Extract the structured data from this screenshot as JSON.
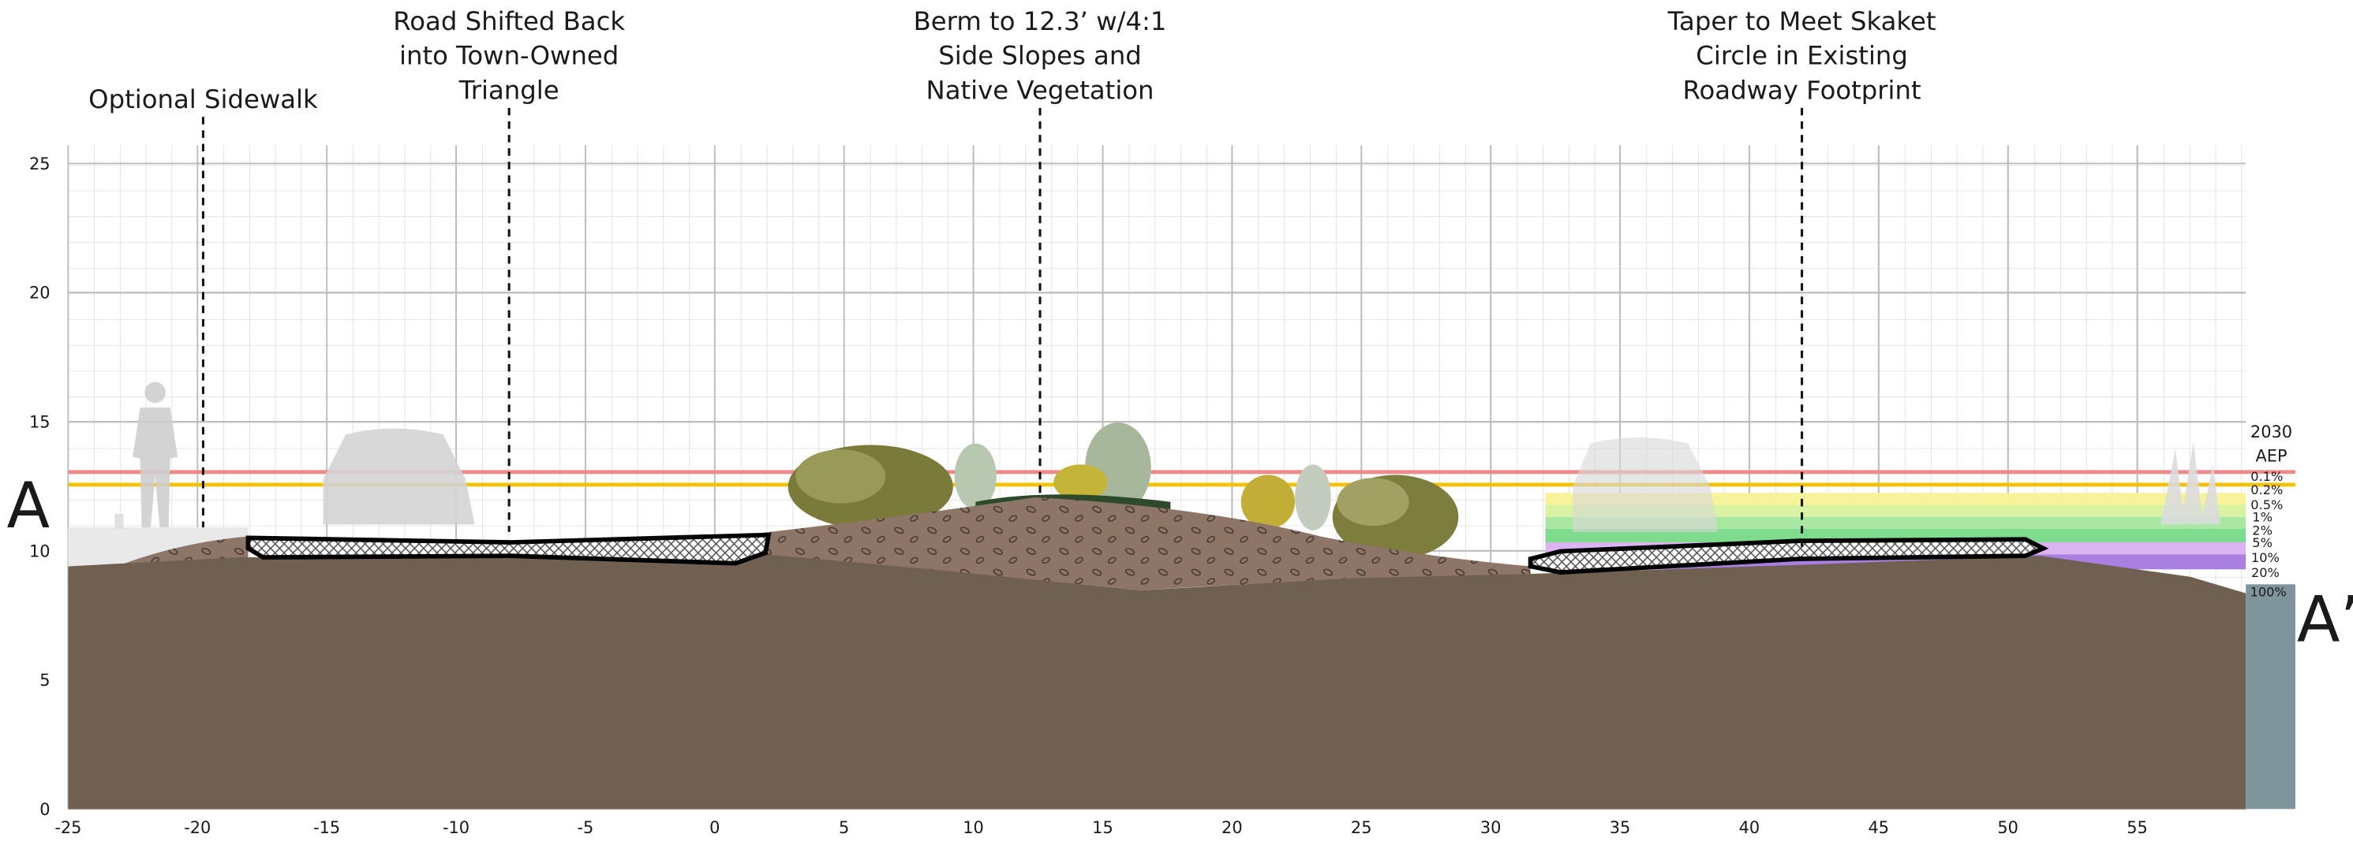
{
  "axes": {
    "xlim": [
      -25,
      59.2
    ],
    "ylim": [
      0,
      25.7
    ],
    "xticks": [
      -25,
      -20,
      -15,
      -10,
      -5,
      0,
      5,
      10,
      15,
      20,
      25,
      30,
      35,
      40,
      45,
      50,
      55
    ],
    "yticks": [
      0,
      5,
      10,
      15,
      20,
      25
    ]
  },
  "annotations": [
    {
      "lines": [
        "Optional Sidewalk"
      ]
    },
    {
      "lines": [
        "Road Shifted Back",
        "into Town-Owned",
        "Triangle"
      ]
    },
    {
      "lines": [
        "Berm to 12.3’ w/4:1",
        "Side Slopes and",
        "Native Vegetation"
      ]
    },
    {
      "lines": [
        "Taper to Meet Skaket",
        "Circle in Existing",
        "Roadway Footprint"
      ]
    }
  ],
  "section_labels": {
    "start": "A",
    "end": "A’"
  },
  "aep_legend": {
    "title": [
      "2030",
      "AEP"
    ],
    "levels": [
      "0.1%",
      "0.2%",
      "0.5%",
      "1%",
      "2%",
      "5%",
      "10%",
      "20%",
      "100%"
    ]
  }
}
